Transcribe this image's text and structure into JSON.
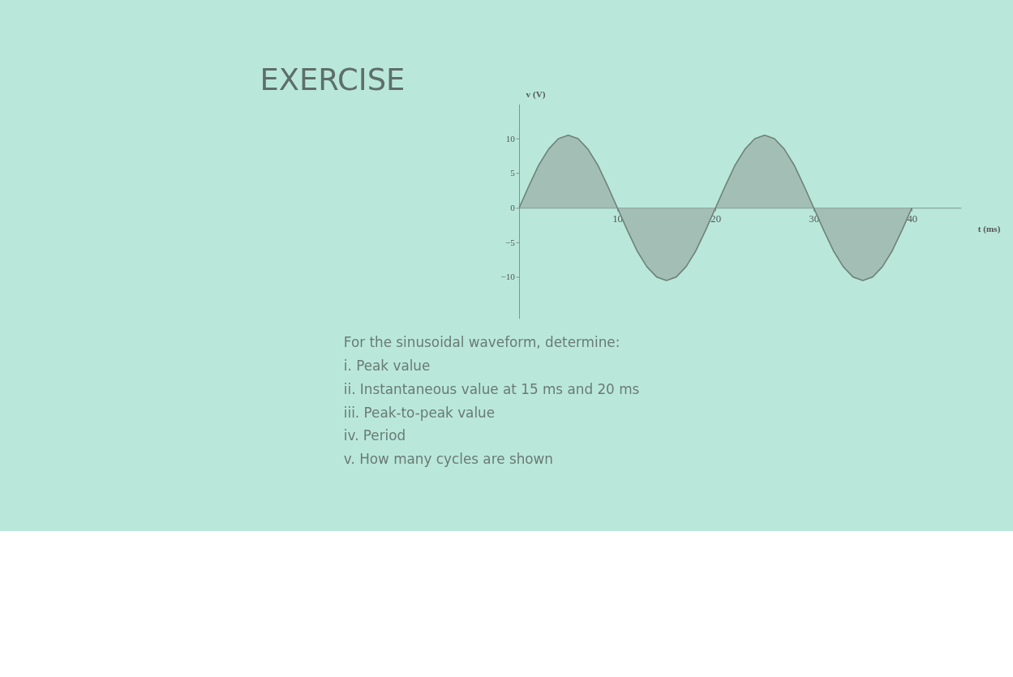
{
  "chart_data": {
    "type": "area",
    "title": "EXERCISE",
    "xlabel": "t (ms)",
    "ylabel": "v (V)",
    "x": [
      0,
      1,
      2,
      3,
      4,
      5,
      6,
      7,
      8,
      9,
      10,
      11,
      12,
      13,
      14,
      15,
      16,
      17,
      18,
      19,
      20,
      21,
      22,
      23,
      24,
      25,
      26,
      27,
      28,
      29,
      30,
      31,
      32,
      33,
      34,
      35,
      36,
      37,
      38,
      39,
      40
    ],
    "series": [
      {
        "color": "#9aaea5",
        "values": [
          0,
          3.2,
          6.2,
          8.5,
          10.0,
          10.5,
          10.0,
          8.5,
          6.2,
          3.2,
          0,
          -3.2,
          -6.2,
          -8.5,
          -10.0,
          -10.5,
          -10.0,
          -8.5,
          -6.2,
          -3.2,
          0,
          3.2,
          6.2,
          8.5,
          10.0,
          10.5,
          10.0,
          8.5,
          6.2,
          3.2,
          0,
          -3.2,
          -6.2,
          -8.5,
          -10.0,
          -10.5,
          -10.0,
          -8.5,
          -6.2,
          -3.2,
          0
        ]
      }
    ],
    "xlim": [
      0,
      45
    ],
    "ylim": [
      -16,
      15
    ],
    "xticks": [
      10,
      20,
      30,
      40
    ],
    "yticks": [
      -10,
      -5,
      0,
      5,
      10
    ],
    "grid": false,
    "annotations": [
      "For the sinusoidal waveform, determine:",
      "i.    Peak value",
      "ii.   Instantaneous value at 15 ms and 20 ms",
      "iii.  Peak-to-peak value",
      "iv.   Period",
      "v.    How many cycles are shown"
    ]
  }
}
